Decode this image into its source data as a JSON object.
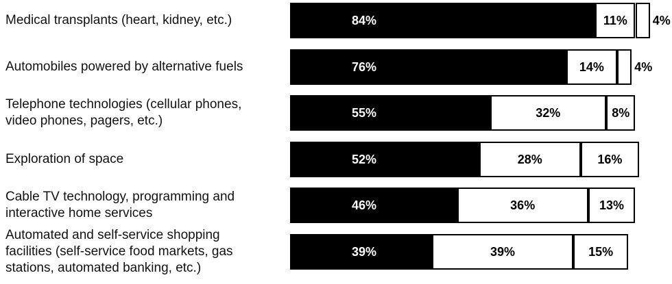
{
  "chart_data": {
    "type": "bar",
    "orientation": "horizontal",
    "stacked": true,
    "categories": [
      "Medical transplants (heart, kidney, etc.)",
      "Automobiles powered by alternative fuels",
      "Telephone technologies (cellular phones, video phones, pagers, etc.)",
      "Exploration of space",
      "Cable TV technology, programming and interactive home services",
      "Automated and self-service shopping facilities (self-service food markets, gas stations, automated banking, etc.)"
    ],
    "series": [
      {
        "color": "#000000",
        "values": [
          84,
          76,
          55,
          52,
          46,
          39
        ],
        "value_labels": [
          "84%",
          "76%",
          "55%",
          "52%",
          "46%",
          "39%"
        ]
      },
      {
        "color": "#ffffff",
        "values": [
          11,
          14,
          32,
          28,
          36,
          39
        ],
        "value_labels": [
          "11%",
          "14%",
          "32%",
          "28%",
          "36%",
          "39%"
        ]
      },
      {
        "color": "#ffffff",
        "values": [
          4,
          4,
          8,
          16,
          13,
          15
        ],
        "value_labels": [
          "4%",
          "4%",
          "8%",
          "16%",
          "13%",
          "15%"
        ]
      }
    ]
  }
}
